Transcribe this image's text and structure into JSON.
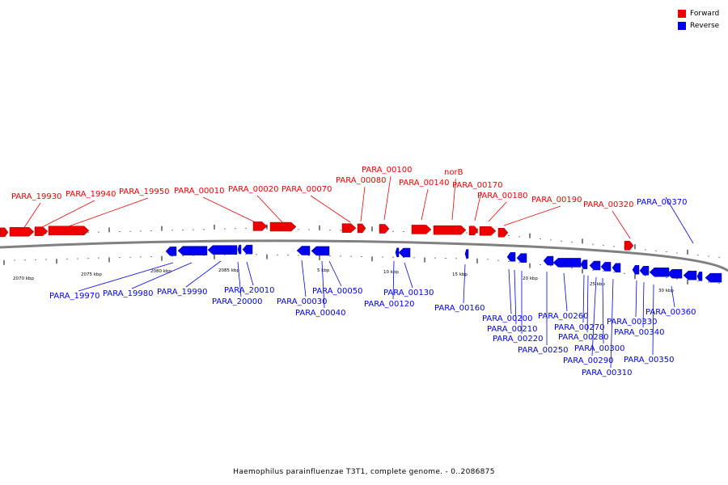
{
  "colors": {
    "forward": "#ee0000",
    "reverse": "#0000ee",
    "backbone": "#808080"
  },
  "legend": [
    {
      "label": "Forward",
      "color": "#ee0000"
    },
    {
      "label": "Reverse",
      "color": "#0000ee"
    }
  ],
  "caption": "Haemophilus parainfluenzae T3T1, complete genome. - 0..2086875",
  "scale_labels": [
    "2070 kbp",
    "2075 kbp",
    "2080 kbp",
    "2085 kbp",
    "5 kbp",
    "10 kbp",
    "15 kbp",
    "20 kbp",
    "25 kbp",
    "30 kbp"
  ],
  "forward_genes": [
    "PARA_19930",
    "PARA_19940",
    "PARA_19950",
    "PARA_00010",
    "PARA_00020",
    "PARA_00070",
    "PARA_00080",
    "PARA_00100",
    "PARA_00140",
    "norB",
    "PARA_00170",
    "PARA_00180",
    "PARA_00190",
    "PARA_00320"
  ],
  "reverse_genes": [
    "PARA_00370",
    "PARA_19970",
    "PARA_19980",
    "PARA_19990",
    "PARA_20010",
    "PARA_20000",
    "PARA_00030",
    "PARA_00040",
    "PARA_00050",
    "PARA_00120",
    "PARA_00130",
    "PARA_00160",
    "PARA_00200",
    "PARA_00210",
    "PARA_00220",
    "PARA_00250",
    "PARA_00260",
    "PARA_00270",
    "PARA_00280",
    "PARA_00290",
    "PARA_00300",
    "PARA_00310",
    "PARA_00330",
    "PARA_00340",
    "PARA_00350",
    "PARA_00360"
  ]
}
